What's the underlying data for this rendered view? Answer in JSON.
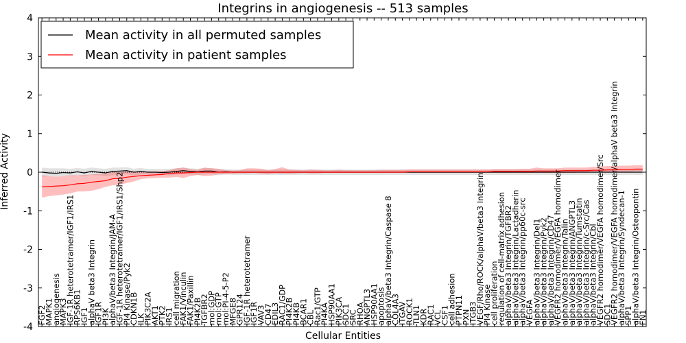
{
  "chart_data": {
    "type": "line",
    "title": "Integrins in angiogenesis -- 513 samples",
    "xlabel": "Cellular Entities",
    "ylabel": "Inferred Activity",
    "ylim": [
      -4,
      4
    ],
    "yticks": [
      -4,
      -3,
      -2,
      -1,
      0,
      1,
      2,
      3,
      4
    ],
    "legend_position": "upper-left",
    "grid": false,
    "categories": [
      "FGF2",
      "MAPK1",
      "angiogenesis",
      "MAPK3",
      "IGF-1R heterotetramer/IGF1/IRS1",
      "RPS6KB1",
      "IGF1",
      "alphaV beta3 Integrin",
      "IGF1R",
      "PI3K",
      "alphaV/beta3 Integrin/JAM-A",
      "IGF-1R heterotetramer/IGF1/IRS1/Shp2",
      "PI4 Kinase/Pyk2",
      "CDKN1B",
      "ILK",
      "PIK3C2A",
      "AKT1",
      "PTK2",
      "IRS1",
      "cell migration",
      "FAK1/Vinculin",
      "FAK1/Paxillin",
      "PI4K2B",
      "TGFBR2",
      "mol:GDP",
      "mol:GTP",
      "mol:PI-4-5-P2",
      "MFGE8",
      "GPR124",
      "IGF-1R heterotetramer",
      "IGF1R",
      "VAV3",
      "CD47",
      "EDIL3",
      "RAC1/GDP",
      "PI4K2B",
      "PI4KB",
      "BCAR1",
      "CBL",
      "Rac1/GTP",
      "PI4KA",
      "HSP90AA1",
      "PIK3CA",
      "SDC1",
      "SRC",
      "RHOA",
      "ANGPTL3",
      "HSP90AA1",
      "apoptosis",
      "alphaV/beta3 Integrin/Caspase 8",
      "COL4A3",
      "ITGAV",
      "ROCK1",
      "TLN1",
      "KDR",
      "RAC1",
      "VCL",
      "CSF1",
      "cell adhesion",
      "PTPN11",
      "PXN",
      "ITGB3",
      "VEGF/Rho/ROCK/alphaV/beta3 Integrin",
      "PI4 Kinase",
      "cell proliferation",
      "regulation of cell-matrix adhesion",
      "alphaV/beta3 Integrin/TGFBR2",
      "alphaV/beta3 Integrin/Lactadherin",
      "alphaV/beta3 Integrin/pp60c-src",
      "VEGFA",
      "alphaV/beta3 Integrin/Del1",
      "alphaV/beta3 Integrin/Pyk2",
      "alphaV/beta3 Integrin/CD47",
      "VEGFR2 homodimer/VEGFA homodimer",
      "alphaV/beta3 Integrin/Talin",
      "alphaV/beta3 Integrin/ANGPTL3",
      "alphaV/beta3 Integrin/Tumstatin",
      "alphaV/beta3 Integrin/c-Src/Cas",
      "alphaV/beta3 Integrin/Cbl",
      "VEGFR2 homodimer/VEGFA homodimer/Src",
      "SDC1",
      "VEGFR2 homodimer/VEGFA homodimer/alphaV beta3 Integrin",
      "alphaV/beta3 Integrin/Syndecan-1",
      "SPP1",
      "alphaV/beta3 Integrin/Osteopontin",
      "FN1"
    ],
    "series": [
      {
        "name": "Mean activity in all permuted samples",
        "color": "#000000",
        "values": [
          0.0,
          -0.02,
          -0.03,
          -0.01,
          -0.02,
          0.01,
          -0.02,
          0.02,
          0.0,
          -0.02,
          0.02,
          0.03,
          0.04,
          0.0,
          0.02,
          0.0,
          0.0,
          -0.01,
          0.0,
          0.02,
          0.04,
          0.02,
          0.01,
          0.03,
          0.03,
          0.0,
          0.01,
          0.0,
          0.0,
          0.0,
          0.0,
          0.0,
          0.0,
          0.0,
          0.0,
          0.0,
          0.0,
          0.0,
          0.0,
          0.0,
          0.0,
          0.0,
          0.0,
          0.0,
          0.0,
          0.0,
          0.0,
          0.0,
          0.0,
          0.0,
          0.0,
          0.0,
          0.0,
          0.0,
          0.0,
          0.0,
          0.0,
          0.0,
          0.0,
          0.0,
          0.0,
          0.0,
          0.0,
          0.0,
          0.0,
          0.0,
          0.0,
          0.0,
          0.0,
          0.0,
          0.0,
          0.0,
          0.0,
          0.0,
          0.0,
          0.0,
          0.0,
          0.0,
          0.0,
          0.0,
          0.0,
          0.0,
          0.0,
          0.0,
          0.0,
          0.0
        ],
        "band_lower": [
          -0.12,
          -0.1,
          -0.12,
          -0.1,
          -0.1,
          -0.08,
          -0.1,
          -0.07,
          -0.08,
          -0.1,
          -0.08,
          -0.06,
          -0.05,
          -0.08,
          -0.06,
          -0.06,
          -0.06,
          -0.07,
          -0.08,
          -0.06,
          -0.04,
          -0.06,
          -0.07,
          -0.06,
          -0.05,
          -0.08,
          -0.06,
          -0.07,
          -0.07,
          -0.07,
          -0.07,
          -0.07,
          -0.07,
          -0.07,
          -0.07,
          -0.07,
          -0.07,
          -0.07,
          -0.07,
          -0.07,
          -0.07,
          -0.07,
          -0.07,
          -0.07,
          -0.07,
          -0.07,
          -0.07,
          -0.07,
          -0.07,
          -0.07,
          -0.07,
          -0.07,
          -0.07,
          -0.07,
          -0.07,
          -0.07,
          -0.07,
          -0.07,
          -0.07,
          -0.07,
          -0.07,
          -0.07,
          -0.07,
          -0.07,
          -0.07,
          -0.07,
          -0.07,
          -0.07,
          -0.07,
          -0.07,
          -0.07,
          -0.07,
          -0.07,
          -0.07,
          -0.07,
          -0.07,
          -0.07,
          -0.07,
          -0.07,
          -0.07,
          -0.07,
          -0.07,
          -0.07,
          -0.07,
          -0.07,
          -0.07
        ],
        "band_upper": [
          0.12,
          0.1,
          0.1,
          0.1,
          0.09,
          0.11,
          0.09,
          0.12,
          0.1,
          0.09,
          0.12,
          0.12,
          0.13,
          0.09,
          0.11,
          0.08,
          0.09,
          0.08,
          0.09,
          0.1,
          0.12,
          0.1,
          0.09,
          0.11,
          0.11,
          0.08,
          0.08,
          0.07,
          0.07,
          0.07,
          0.07,
          0.07,
          0.07,
          0.07,
          0.07,
          0.07,
          0.07,
          0.07,
          0.07,
          0.07,
          0.07,
          0.07,
          0.07,
          0.07,
          0.07,
          0.07,
          0.07,
          0.07,
          0.07,
          0.07,
          0.07,
          0.07,
          0.07,
          0.07,
          0.07,
          0.07,
          0.07,
          0.07,
          0.07,
          0.07,
          0.07,
          0.07,
          0.07,
          0.07,
          0.07,
          0.07,
          0.07,
          0.07,
          0.07,
          0.07,
          0.07,
          0.07,
          0.07,
          0.07,
          0.07,
          0.07,
          0.07,
          0.07,
          0.07,
          0.07,
          0.07,
          0.07,
          0.07,
          0.07,
          0.07,
          0.07
        ]
      },
      {
        "name": "Mean activity in patient samples",
        "color": "#ff0000",
        "values": [
          -0.38,
          -0.37,
          -0.36,
          -0.35,
          -0.33,
          -0.3,
          -0.29,
          -0.26,
          -0.24,
          -0.22,
          -0.17,
          -0.16,
          -0.13,
          -0.11,
          -0.09,
          -0.08,
          -0.07,
          -0.06,
          -0.03,
          -0.02,
          -0.02,
          -0.01,
          0.0,
          0.0,
          0.0,
          0.0,
          0.0,
          0.0,
          0.0,
          0.0,
          0.0,
          0.0,
          0.0,
          0.0,
          0.0,
          0.0,
          0.0,
          0.0,
          0.0,
          0.0,
          0.0,
          0.0,
          0.0,
          0.0,
          0.0,
          0.0,
          0.0,
          0.0,
          0.0,
          0.0,
          0.0,
          0.0,
          0.01,
          0.01,
          0.01,
          0.01,
          0.01,
          0.01,
          0.01,
          0.01,
          0.01,
          0.01,
          0.01,
          0.01,
          0.02,
          0.02,
          0.02,
          0.02,
          0.02,
          0.02,
          0.03,
          0.03,
          0.03,
          0.03,
          0.04,
          0.04,
          0.04,
          0.04,
          0.05,
          0.05,
          0.06,
          0.06,
          0.07,
          0.07,
          0.08,
          0.08
        ],
        "band_lower": [
          -0.66,
          -0.62,
          -0.6,
          -0.58,
          -0.55,
          -0.5,
          -0.5,
          -0.48,
          -0.44,
          -0.38,
          -0.34,
          -0.33,
          -0.28,
          -0.24,
          -0.18,
          -0.16,
          -0.15,
          -0.14,
          -0.14,
          -0.12,
          -0.15,
          -0.1,
          -0.07,
          -0.1,
          -0.09,
          -0.05,
          -0.05,
          -0.04,
          -0.03,
          -0.03,
          -0.02,
          -0.04,
          -0.05,
          -0.03,
          -0.04,
          -0.04,
          -0.03,
          -0.02,
          -0.03,
          -0.03,
          -0.02,
          -0.02,
          -0.02,
          -0.02,
          -0.02,
          -0.02,
          -0.02,
          -0.02,
          -0.02,
          -0.02,
          -0.02,
          -0.02,
          -0.02,
          -0.02,
          -0.02,
          -0.02,
          -0.02,
          -0.02,
          -0.02,
          -0.02,
          -0.02,
          -0.02,
          -0.02,
          -0.02,
          -0.02,
          -0.02,
          -0.02,
          -0.02,
          -0.02,
          -0.02,
          -0.02,
          -0.02,
          -0.02,
          -0.02,
          -0.02,
          -0.02,
          -0.01,
          -0.01,
          0.0,
          0.0,
          0.0,
          0.0,
          0.01,
          0.01,
          0.02,
          0.02
        ],
        "band_upper": [
          -0.08,
          -0.1,
          -0.12,
          -0.1,
          -0.08,
          -0.08,
          -0.07,
          -0.06,
          -0.04,
          -0.04,
          0.0,
          0.01,
          0.02,
          0.02,
          0.0,
          0.02,
          0.02,
          0.03,
          0.05,
          0.1,
          0.12,
          0.08,
          0.06,
          0.12,
          0.1,
          0.09,
          0.05,
          0.04,
          0.05,
          0.1,
          0.1,
          0.09,
          0.05,
          0.08,
          0.13,
          0.07,
          0.06,
          0.05,
          0.07,
          0.06,
          0.05,
          0.05,
          0.06,
          0.05,
          0.05,
          0.05,
          0.05,
          0.05,
          0.06,
          0.06,
          0.06,
          0.06,
          0.07,
          0.07,
          0.07,
          0.07,
          0.07,
          0.07,
          0.07,
          0.07,
          0.07,
          0.07,
          0.07,
          0.07,
          0.08,
          0.08,
          0.08,
          0.08,
          0.09,
          0.09,
          0.12,
          0.1,
          0.1,
          0.1,
          0.12,
          0.12,
          0.12,
          0.12,
          0.14,
          0.15,
          0.16,
          0.16,
          0.17,
          0.17,
          0.18,
          0.18
        ]
      }
    ]
  }
}
